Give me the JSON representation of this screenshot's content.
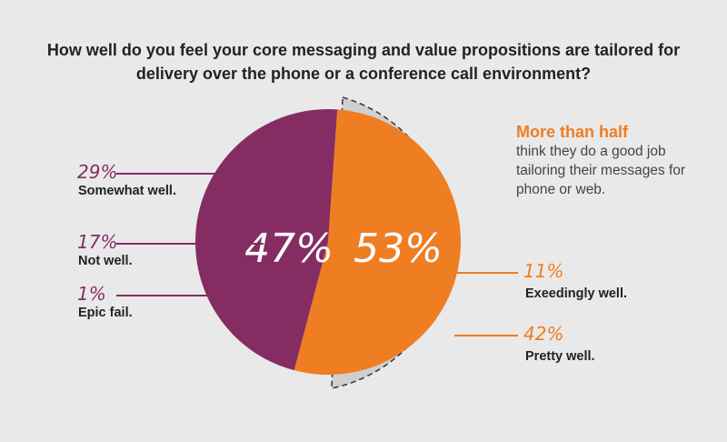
{
  "title": "How well do you feel your core messaging and value propositions are tailored for delivery over the phone or a conference call environment?",
  "colors": {
    "positive": "#ef7d22",
    "negative": "#852d62",
    "shadow": "#cfcfcf",
    "text": "#222222"
  },
  "note": {
    "headline": "More than half",
    "body": "think they do a good job tailoring their messages for phone or web."
  },
  "chart_data": {
    "type": "pie",
    "groups": [
      {
        "value_label": "47%",
        "value": 47,
        "color": "#852d62",
        "items": [
          {
            "label": "Somewhat well.",
            "value": 29,
            "value_label": "29%"
          },
          {
            "label": "Not well.",
            "value": 17,
            "value_label": "17%"
          },
          {
            "label": "Epic fail.",
            "value": 1,
            "value_label": "1%"
          }
        ]
      },
      {
        "value_label": "53%",
        "value": 53,
        "color": "#ef7d22",
        "items": [
          {
            "label": "Exeedingly well.",
            "value": 11,
            "value_label": "11%"
          },
          {
            "label": "Pretty well.",
            "value": 42,
            "value_label": "42%"
          }
        ]
      }
    ]
  }
}
